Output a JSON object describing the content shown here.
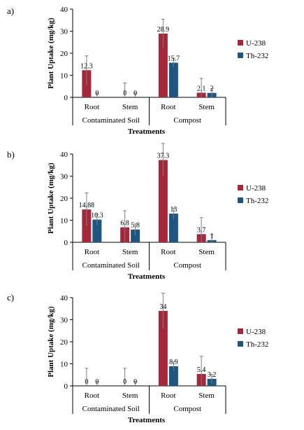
{
  "colors": {
    "u238": "#a5283a",
    "th232": "#1d5680",
    "axis": "#7f7f7f",
    "errbar": "#7f7f7f"
  },
  "chart_data": [
    {
      "type": "bar",
      "panel": "a)",
      "ylabel": "Plant Uptake (mg/kg)",
      "xlabel": "Treatments",
      "ylim": [
        0,
        40
      ],
      "yticks": [
        0,
        10,
        20,
        30,
        40
      ],
      "categories": [
        "Root",
        "Stem",
        "Root",
        "Stem"
      ],
      "groups": [
        "Contaminated Soil",
        "Compost"
      ],
      "series": [
        {
          "name": "U-238",
          "values": [
            12.3,
            0,
            28.9,
            2.1
          ],
          "labels": [
            "12.3",
            "0",
            "28.9",
            "2.1"
          ],
          "errors": [
            6.5,
            6.5,
            6.5,
            6.5
          ]
        },
        {
          "name": "Th-232",
          "values": [
            0,
            0,
            15.7,
            2
          ],
          "labels": [
            "0",
            "0",
            "15.7",
            "2"
          ],
          "errors": [
            2,
            2,
            2,
            2
          ]
        }
      ]
    },
    {
      "type": "bar",
      "panel": "b)",
      "ylabel": "Plant Uptake (mg/kg)",
      "xlabel": "Treatments",
      "ylim": [
        0,
        40
      ],
      "yticks": [
        0,
        10,
        20,
        30,
        40
      ],
      "categories": [
        "Root",
        "Stem",
        "Root",
        "Stem"
      ],
      "groups": [
        "Contaminated Soil",
        "Compost"
      ],
      "series": [
        {
          "name": "U-238",
          "values": [
            14.88,
            6.8,
            37.3,
            3.7
          ],
          "labels": [
            "14.88",
            "6.8",
            "37.3",
            "3.7"
          ],
          "errors": [
            7.5,
            7.5,
            7.5,
            7.5
          ]
        },
        {
          "name": "Th-232",
          "values": [
            10.3,
            5.8,
            13,
            1
          ],
          "labels": [
            "10.3",
            "5.8",
            "13",
            "1"
          ],
          "errors": [
            2.5,
            2.5,
            2.5,
            2.5
          ]
        }
      ]
    },
    {
      "type": "bar",
      "panel": "c)",
      "ylabel": "Plant Uptake (mg/kg)",
      "xlabel": "Treatments",
      "ylim": [
        0,
        40
      ],
      "yticks": [
        0,
        10,
        20,
        30,
        40
      ],
      "categories": [
        "Root",
        "Stem",
        "Root",
        "Stem"
      ],
      "groups": [
        "Contaminated Soil",
        "Compost"
      ],
      "series": [
        {
          "name": "U-238",
          "values": [
            0,
            0,
            34,
            5.4
          ],
          "labels": [
            "0",
            "0",
            "34",
            "5.4"
          ],
          "errors": [
            8,
            8,
            8,
            8
          ]
        },
        {
          "name": "Th-232",
          "values": [
            0,
            0,
            8.9,
            3.2
          ],
          "labels": [
            "0",
            "0",
            "8.9",
            "3.2"
          ],
          "errors": [
            2,
            2,
            2,
            2
          ]
        }
      ]
    }
  ]
}
